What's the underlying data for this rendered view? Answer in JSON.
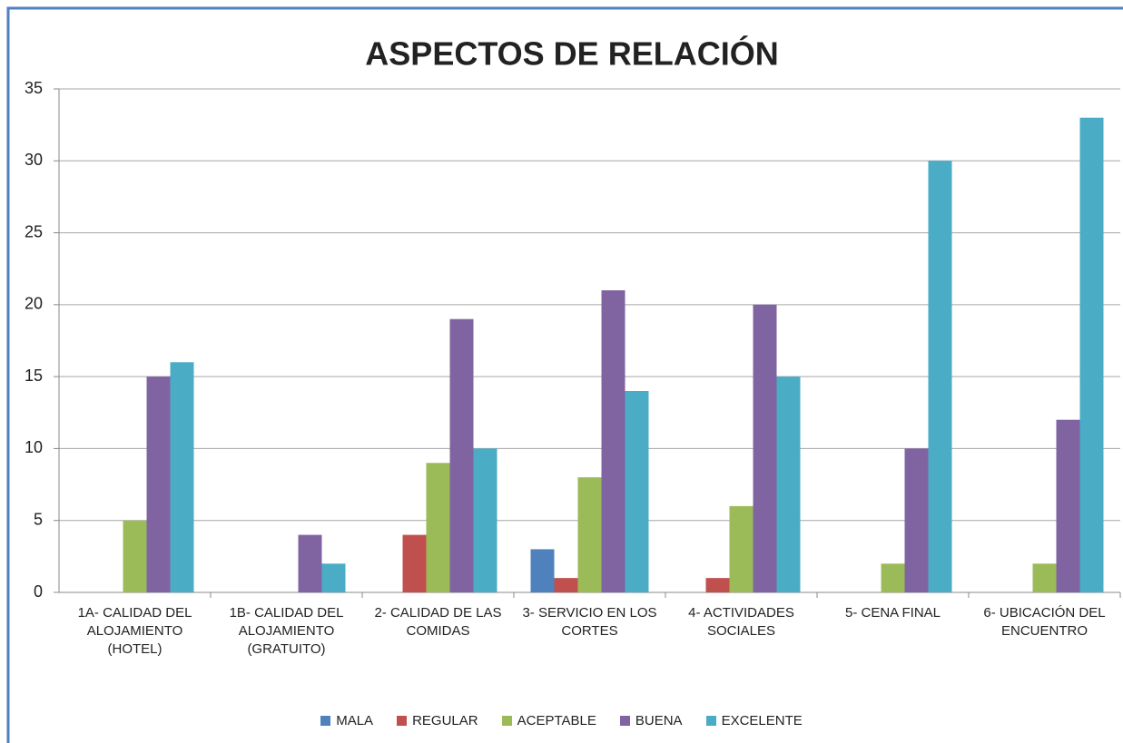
{
  "chart_data": {
    "type": "bar",
    "title": "ASPECTOS DE RELACIÓN",
    "categories": [
      "1A- CALIDAD DEL ALOJAMIENTO (HOTEL)",
      "1B- CALIDAD DEL ALOJAMIENTO (GRATUITO)",
      "2- CALIDAD DE LAS COMIDAS",
      "3- SERVICIO EN LOS CORTES",
      "4- ACTIVIDADES SOCIALES",
      "5- CENA FINAL",
      "6- UBICACIÓN DEL ENCUENTRO"
    ],
    "series": [
      {
        "name": "MALA",
        "color": "#4f81bd",
        "values": [
          0,
          0,
          0,
          3,
          0,
          0,
          0
        ]
      },
      {
        "name": "REGULAR",
        "color": "#c0504d",
        "values": [
          0,
          0,
          4,
          1,
          1,
          0,
          0
        ]
      },
      {
        "name": "ACEPTABLE",
        "color": "#9bbb59",
        "values": [
          5,
          0,
          9,
          8,
          6,
          2,
          2
        ]
      },
      {
        "name": "BUENA",
        "color": "#8064a2",
        "values": [
          15,
          4,
          19,
          21,
          20,
          10,
          12
        ]
      },
      {
        "name": "EXCELENTE",
        "color": "#4bacc6",
        "values": [
          16,
          2,
          10,
          14,
          15,
          30,
          33
        ]
      }
    ],
    "ylim": [
      0,
      35
    ],
    "yticks": [
      0,
      5,
      10,
      15,
      20,
      25,
      30,
      35
    ],
    "grid": true,
    "legend": "bottom"
  }
}
